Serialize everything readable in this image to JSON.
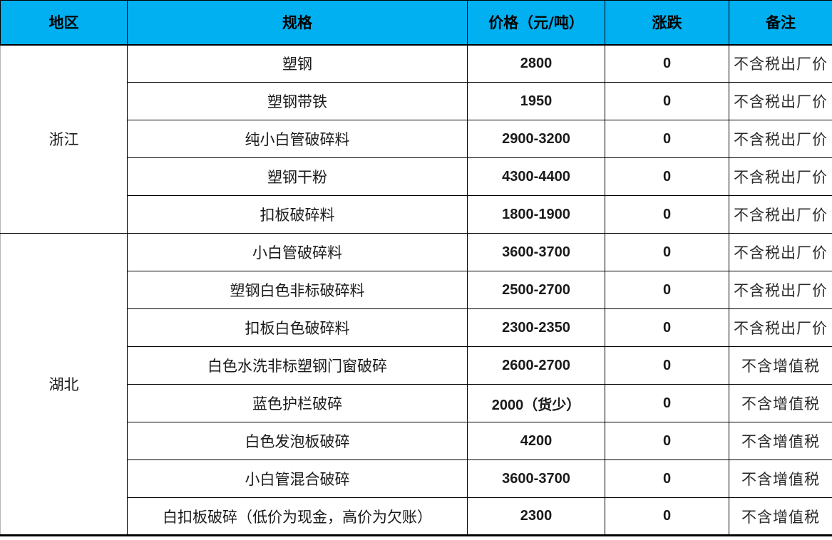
{
  "colors": {
    "header_bg": "#00B0F0",
    "grid": "#000000",
    "text": "#1A1A1A"
  },
  "header": {
    "columns": [
      {
        "key": "region",
        "label": "地区"
      },
      {
        "key": "spec",
        "label": "规格"
      },
      {
        "key": "price",
        "label": "价格（元/吨）"
      },
      {
        "key": "change",
        "label": "涨跌"
      },
      {
        "key": "note",
        "label": "备注"
      }
    ]
  },
  "table": {
    "regions": [
      {
        "name": "浙江",
        "rows": [
          {
            "spec": "塑钢",
            "price": "2800",
            "change": "0",
            "note": "不含税出厂价"
          },
          {
            "spec": "塑钢带铁",
            "price": "1950",
            "change": "0",
            "note": "不含税出厂价"
          },
          {
            "spec": "纯小白管破碎料",
            "price": "2900-3200",
            "change": "0",
            "note": "不含税出厂价"
          },
          {
            "spec": "塑钢干粉",
            "price": "4300-4400",
            "change": "0",
            "note": "不含税出厂价"
          },
          {
            "spec": "扣板破碎料",
            "price": "1800-1900",
            "change": "0",
            "note": "不含税出厂价"
          }
        ]
      },
      {
        "name": "湖北",
        "rows": [
          {
            "spec": "小白管破碎料",
            "price": "3600-3700",
            "change": "0",
            "note": "不含税出厂价"
          },
          {
            "spec": "塑钢白色非标破碎料",
            "price": "2500-2700",
            "change": "0",
            "note": "不含税出厂价"
          },
          {
            "spec": "扣板白色破碎料",
            "price": "2300-2350",
            "change": "0",
            "note": "不含税出厂价"
          },
          {
            "spec": "白色水洗非标塑钢门窗破碎",
            "price": "2600-2700",
            "change": "0",
            "note": "不含增值税"
          },
          {
            "spec": "蓝色护栏破碎",
            "price": "2000（货少）",
            "change": "0",
            "note": "不含增值税"
          },
          {
            "spec": "白色发泡板破碎",
            "price": "4200",
            "change": "0",
            "note": "不含增值税"
          },
          {
            "spec": "小白管混合破碎",
            "price": "3600-3700",
            "change": "0",
            "note": "不含增值税"
          },
          {
            "spec": "白扣板破碎（低价为现金，高价为欠账）",
            "price": "2300",
            "change": "0",
            "note": "不含增值税"
          }
        ]
      }
    ]
  }
}
